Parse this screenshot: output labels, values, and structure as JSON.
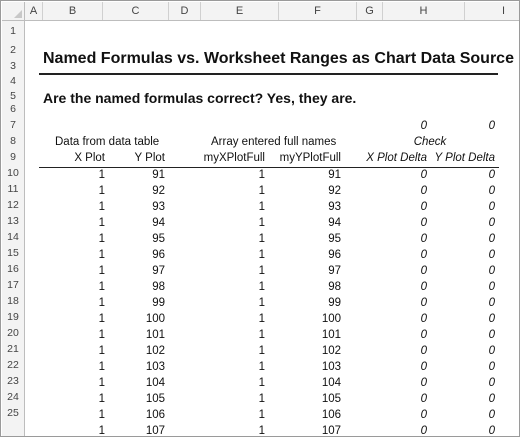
{
  "columns": [
    "A",
    "B",
    "C",
    "D",
    "E",
    "F",
    "G",
    "H",
    "I"
  ],
  "row_numbers": [
    1,
    2,
    3,
    4,
    5,
    6,
    7,
    8,
    9,
    10,
    11,
    12,
    13,
    14,
    15,
    16,
    17,
    18,
    19,
    20,
    21,
    22,
    23,
    24,
    25
  ],
  "title": "Named Formulas vs. Worksheet Ranges as Chart Data Source",
  "question": "Are the named formulas correct? Yes, they are.",
  "check_totals": {
    "h": "0",
    "i": "0"
  },
  "group_labels": {
    "data_table": "Data from data table",
    "array_names": "Array entered full names",
    "check": "Check"
  },
  "headers": {
    "x_plot": "X Plot",
    "y_plot": "Y Plot",
    "x_full": "myXPlotFull",
    "y_full": "myYPlotFull",
    "x_delta": "X Plot Delta",
    "y_delta": "Y Plot Delta"
  },
  "rows": [
    {
      "x": "1",
      "y": "91",
      "xf": "1",
      "yf": "91",
      "dx": "0",
      "dy": "0"
    },
    {
      "x": "1",
      "y": "92",
      "xf": "1",
      "yf": "92",
      "dx": "0",
      "dy": "0"
    },
    {
      "x": "1",
      "y": "93",
      "xf": "1",
      "yf": "93",
      "dx": "0",
      "dy": "0"
    },
    {
      "x": "1",
      "y": "94",
      "xf": "1",
      "yf": "94",
      "dx": "0",
      "dy": "0"
    },
    {
      "x": "1",
      "y": "95",
      "xf": "1",
      "yf": "95",
      "dx": "0",
      "dy": "0"
    },
    {
      "x": "1",
      "y": "96",
      "xf": "1",
      "yf": "96",
      "dx": "0",
      "dy": "0"
    },
    {
      "x": "1",
      "y": "97",
      "xf": "1",
      "yf": "97",
      "dx": "0",
      "dy": "0"
    },
    {
      "x": "1",
      "y": "98",
      "xf": "1",
      "yf": "98",
      "dx": "0",
      "dy": "0"
    },
    {
      "x": "1",
      "y": "99",
      "xf": "1",
      "yf": "99",
      "dx": "0",
      "dy": "0"
    },
    {
      "x": "1",
      "y": "100",
      "xf": "1",
      "yf": "100",
      "dx": "0",
      "dy": "0"
    },
    {
      "x": "1",
      "y": "101",
      "xf": "1",
      "yf": "101",
      "dx": "0",
      "dy": "0"
    },
    {
      "x": "1",
      "y": "102",
      "xf": "1",
      "yf": "102",
      "dx": "0",
      "dy": "0"
    },
    {
      "x": "1",
      "y": "103",
      "xf": "1",
      "yf": "103",
      "dx": "0",
      "dy": "0"
    },
    {
      "x": "1",
      "y": "104",
      "xf": "1",
      "yf": "104",
      "dx": "0",
      "dy": "0"
    },
    {
      "x": "1",
      "y": "105",
      "xf": "1",
      "yf": "105",
      "dx": "0",
      "dy": "0"
    },
    {
      "x": "1",
      "y": "106",
      "xf": "1",
      "yf": "106",
      "dx": "0",
      "dy": "0"
    },
    {
      "x": "1",
      "y": "107",
      "xf": "1",
      "yf": "107",
      "dx": "0",
      "dy": "0"
    }
  ]
}
